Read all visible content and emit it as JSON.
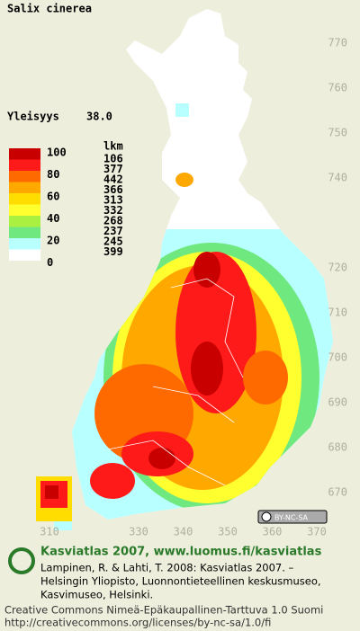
{
  "title": "Salix cinerea",
  "frequency": {
    "label": "Yleisyys",
    "value": "38.0"
  },
  "legend": {
    "count_header": "lkm",
    "scale_labels": [
      100,
      80,
      60,
      40,
      20,
      0
    ],
    "classes": [
      {
        "color": "#c80000",
        "count": 106
      },
      {
        "color": "#ff1a1a",
        "count": 377
      },
      {
        "color": "#ff6a00",
        "count": 442
      },
      {
        "color": "#ffa800",
        "count": 366
      },
      {
        "color": "#ffdd00",
        "count": 313
      },
      {
        "color": "#ffff30",
        "count": 332
      },
      {
        "color": "#aaf040",
        "count": 268
      },
      {
        "color": "#70e880",
        "count": 237
      },
      {
        "color": "#b8ffff",
        "count": 245
      },
      {
        "color": "#ffffff",
        "count": 399
      }
    ]
  },
  "map_grid": {
    "northing": [
      770,
      760,
      750,
      740,
      720,
      710,
      700,
      690,
      680,
      670
    ],
    "easting": [
      310,
      330,
      340,
      350,
      360,
      370
    ]
  },
  "license_badge": "BY-NC-SA",
  "footer": {
    "heading": "Kasviatlas 2007, www.luomus.fi/kasviatlas",
    "citation": [
      "Lampinen, R. & Lahti, T. 2008: Kasviatlas 2007. –",
      "Helsingin Yliopisto, Luonnontieteellinen keskusmuseo,",
      "Kasvimuseo, Helsinki."
    ],
    "license": [
      "Creative Commons Nimeä-Epäkaupallinen-Tarttuva 1.0 Suomi",
      "http://creativecommons.org/licenses/by-nc-sa/1.0/fi"
    ]
  }
}
